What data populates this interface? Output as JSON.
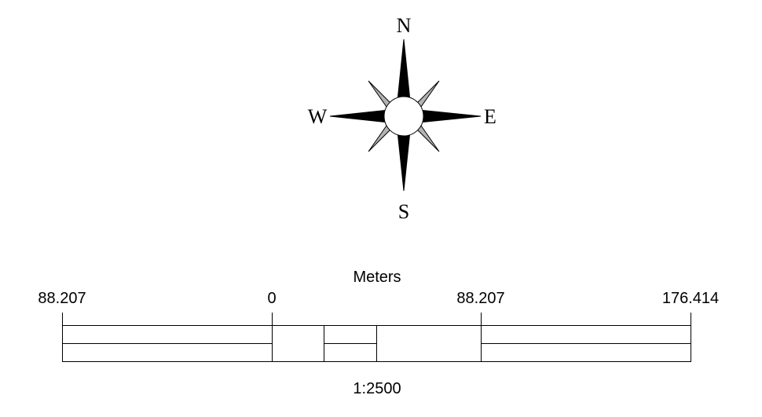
{
  "compass": {
    "north": "N",
    "south": "S",
    "east": "E",
    "west": "W",
    "colors": {
      "cardinal_points": "#000000",
      "intercardinal_points": "#b3b3b3",
      "center_circle": "#ffffff"
    }
  },
  "scale_bar": {
    "units": "Meters",
    "tick_labels": [
      "88.207",
      "0",
      "88.207",
      "176.414"
    ],
    "ratio": "1:2500"
  }
}
